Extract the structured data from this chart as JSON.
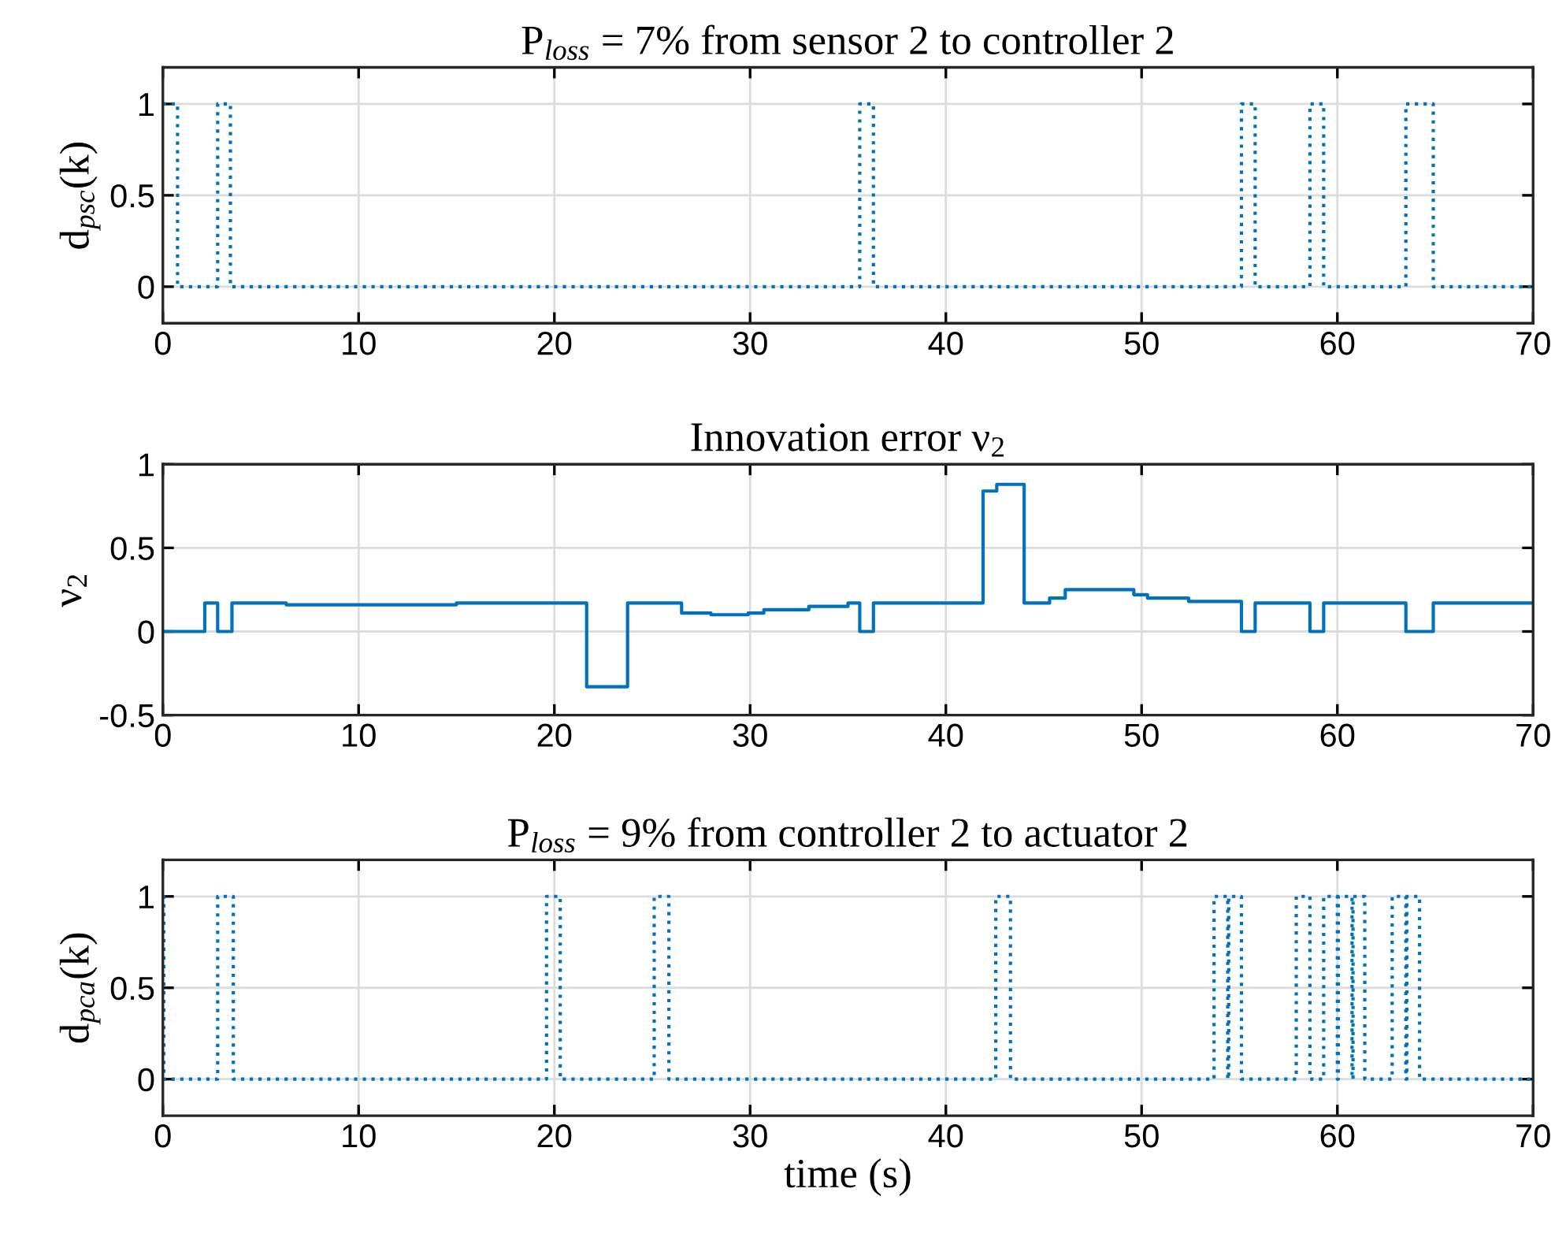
{
  "chart_data": [
    {
      "type": "step",
      "title": "P$_{loss}$ = 7% from sensor 2 to controller 2",
      "ylabel": "d$_{psc}$(k)",
      "xlim": [
        0,
        70
      ],
      "xticks": [
        0,
        10,
        20,
        30,
        40,
        50,
        60,
        70
      ],
      "ylim": [
        -0.2,
        1.2
      ],
      "yticks": [
        0,
        0.5,
        1
      ],
      "grid": true,
      "line_style": "dotted",
      "series": [
        {
          "color": "#0072bd",
          "x": [
            0,
            0.75,
            2.8,
            3.45,
            35.6,
            36.3,
            55.1,
            55.8,
            58.6,
            59.3,
            63.5,
            64.9,
            70
          ],
          "values": [
            1,
            0,
            1,
            0,
            1,
            0,
            1,
            0,
            1,
            0,
            1,
            0,
            0
          ]
        }
      ]
    },
    {
      "type": "step",
      "title": "Innovation error ν$_{2}$",
      "ylabel": "ν$_{2}$",
      "xlim": [
        0,
        70
      ],
      "xticks": [
        0,
        10,
        20,
        30,
        40,
        50,
        60,
        70
      ],
      "ylim": [
        -0.5,
        1
      ],
      "yticks": [
        {
          "value": -0.5,
          "label": "-0.5"
        },
        0,
        0.5,
        1
      ],
      "grid": true,
      "line_style": "solid",
      "series": [
        {
          "color": "#0072bd",
          "x": [
            0,
            2.14,
            2.8,
            3.53,
            6.3,
            10,
            15,
            20,
            21.65,
            23.74,
            26.5,
            28,
            29.9,
            30.7,
            33,
            35,
            35.6,
            36.3,
            41.9,
            42.6,
            44.0,
            45.3,
            46.1,
            47.6,
            49.6,
            50.3,
            52.4,
            55.1,
            55.8,
            58.6,
            59.3,
            63.5,
            64.9,
            70
          ],
          "values": [
            0,
            0.17,
            0,
            0.17,
            0.16,
            0.16,
            0.17,
            0.17,
            -0.33,
            0.17,
            0.11,
            0.1,
            0.11,
            0.13,
            0.15,
            0.17,
            0,
            0.17,
            0.84,
            0.88,
            0.17,
            0.2,
            0.25,
            0.25,
            0.22,
            0.2,
            0.18,
            0,
            0.17,
            0,
            0.17,
            0,
            0.17,
            0.17
          ]
        }
      ]
    },
    {
      "type": "step",
      "title": "P$_{loss}$ = 9% from controller 2 to actuator 2",
      "ylabel": "d$_{pca}$(k)",
      "xlabel": "time (s)",
      "xlim": [
        0,
        70
      ],
      "xticks": [
        0,
        10,
        20,
        30,
        40,
        50,
        60,
        70
      ],
      "ylim": [
        -0.2,
        1.2
      ],
      "yticks": [
        0,
        0.5,
        1
      ],
      "grid": true,
      "line_style": "dotted",
      "series": [
        {
          "color": "#0072bd",
          "x": [
            0,
            0.05,
            2.8,
            3.6,
            19.6,
            20.3,
            25.1,
            25.85,
            42.55,
            43.3,
            53.7,
            54.4,
            54.45,
            55.1,
            57.9,
            58.6,
            59.3,
            60.0,
            60.05,
            60.75,
            60.8,
            61.4,
            62.8,
            63.5,
            63.55,
            64.2,
            70
          ],
          "values": [
            1,
            0,
            1,
            0,
            1,
            0,
            1,
            0,
            1,
            0,
            1,
            0,
            1,
            0,
            1,
            0,
            1,
            0,
            1,
            0,
            1,
            0,
            1,
            0,
            1,
            0,
            0
          ]
        }
      ]
    }
  ]
}
